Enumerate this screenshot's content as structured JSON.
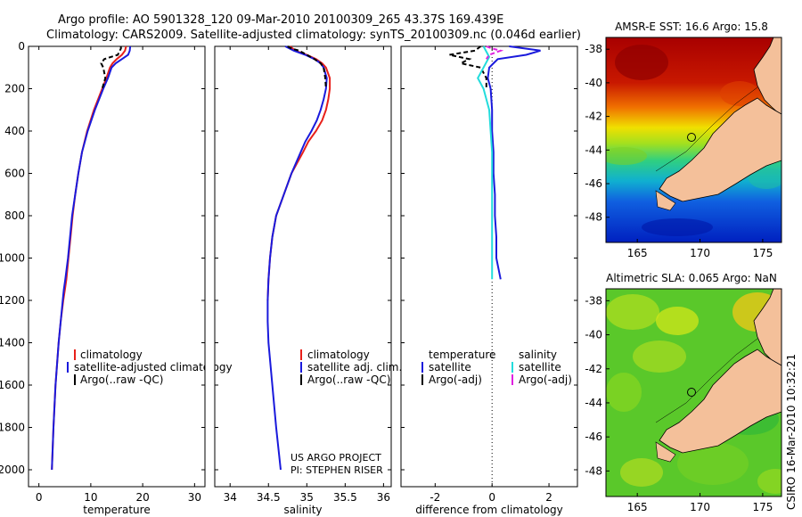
{
  "header": {
    "line1": "Argo profile: AO 5901328_120 09-Mar-2010 20100309_265 43.37S 169.439E",
    "line2": "Climatology: CARS2009. Satellite-adjusted climatology: synTS_20100309.nc (0.046d earlier)"
  },
  "colors": {
    "red": "#e8201a",
    "blue": "#1a1adc",
    "black": "#000000",
    "cyan": "#22dcdc",
    "magenta": "#e020e0",
    "land": "#f4c09a"
  },
  "chart_data": [
    {
      "type": "line",
      "id": "temperature",
      "xlabel": "temperature",
      "ylabel": "",
      "xlim": [
        -2,
        32
      ],
      "ylim": [
        2080,
        0
      ],
      "xticks": [
        0,
        10,
        20,
        30
      ],
      "yticks": [
        0,
        200,
        400,
        600,
        800,
        1000,
        1200,
        1400,
        1600,
        1800,
        2000
      ],
      "legend": [
        "climatology",
        "satellite-adjusted climatology",
        "Argo(..raw -QC)"
      ],
      "series": [
        {
          "name": "climatology",
          "color": "red",
          "y": [
            0,
            20,
            40,
            60,
            80,
            100,
            150,
            200,
            300,
            400,
            500,
            600,
            700,
            800,
            900,
            1000,
            1100,
            1150,
            1200,
            1300,
            1400,
            1600,
            1800,
            2000
          ],
          "x": [
            16.8,
            16.6,
            16.0,
            15.0,
            14.2,
            13.7,
            13.0,
            12.2,
            10.6,
            9.3,
            8.3,
            7.6,
            7.0,
            6.5,
            6.1,
            5.7,
            5.3,
            5.0,
            4.7,
            4.2,
            3.8,
            3.2,
            2.8,
            2.5
          ]
        },
        {
          "name": "satellite-adjusted climatology",
          "color": "blue",
          "y": [
            0,
            20,
            40,
            60,
            80,
            100,
            150,
            200,
            300,
            400,
            500,
            600,
            700,
            800,
            900,
            1000,
            1100,
            1150,
            1200,
            1300,
            1400,
            1600,
            1800,
            2000
          ],
          "x": [
            17.6,
            17.5,
            17.2,
            16.0,
            14.8,
            14.0,
            13.3,
            12.4,
            10.8,
            9.4,
            8.3,
            7.6,
            7.0,
            6.4,
            6.0,
            5.6,
            5.1,
            4.8,
            4.6,
            4.2,
            3.8,
            3.2,
            2.8,
            2.5
          ]
        },
        {
          "name": "Argo(..raw -QC)",
          "color": "black",
          "dash": true,
          "y": [
            0,
            10,
            20,
            40,
            60,
            80,
            100,
            150,
            200
          ],
          "x": [
            15.8,
            15.8,
            15.6,
            15.2,
            12.6,
            12.0,
            12.4,
            12.8,
            12.2
          ]
        }
      ]
    },
    {
      "type": "line",
      "id": "salinity",
      "xlabel": "salinity",
      "ylabel": "",
      "xlim": [
        33.8,
        36.1
      ],
      "ylim": [
        2080,
        0
      ],
      "xticks": [
        34,
        34.5,
        35,
        35.5,
        36
      ],
      "legend": [
        "climatology",
        "satellite adj. clim.",
        "Argo(..raw -QC)"
      ],
      "annotation": [
        "US ARGO PROJECT",
        "PI: STEPHEN RISER"
      ],
      "series": [
        {
          "name": "climatology",
          "color": "red",
          "y": [
            0,
            20,
            40,
            60,
            80,
            100,
            150,
            200,
            250,
            300,
            350,
            400,
            450,
            500,
            600,
            700,
            800,
            900,
            1000,
            1100,
            1200
          ],
          "x": [
            34.78,
            34.85,
            35.0,
            35.12,
            35.2,
            35.25,
            35.3,
            35.3,
            35.28,
            35.25,
            35.2,
            35.12,
            35.02,
            34.95,
            34.8,
            34.7,
            34.6,
            34.55,
            34.52,
            34.5,
            34.49
          ]
        },
        {
          "name": "satellite adj. clim.",
          "color": "blue",
          "y": [
            0,
            20,
            40,
            60,
            80,
            100,
            150,
            200,
            250,
            300,
            350,
            400,
            450,
            500,
            600,
            700,
            800,
            900,
            1000,
            1100,
            1200,
            1300,
            1400,
            1600,
            1800,
            2000
          ],
          "x": [
            34.72,
            34.83,
            34.98,
            35.1,
            35.18,
            35.22,
            35.26,
            35.25,
            35.22,
            35.18,
            35.13,
            35.06,
            34.98,
            34.92,
            34.8,
            34.7,
            34.6,
            34.55,
            34.52,
            34.5,
            34.49,
            34.49,
            34.5,
            34.55,
            34.6,
            34.66
          ]
        },
        {
          "name": "Argo(..raw -QC)",
          "color": "black",
          "dash": true,
          "y": [
            0,
            10,
            20,
            40,
            60,
            80,
            100,
            150,
            200
          ],
          "x": [
            34.75,
            34.8,
            34.9,
            35.0,
            35.1,
            35.18,
            35.22,
            35.24,
            35.25
          ]
        }
      ]
    },
    {
      "type": "line",
      "id": "difference",
      "xlabel": "difference from climatology",
      "ylabel": "",
      "xlim": [
        -3.2,
        3.0
      ],
      "ylim": [
        2080,
        0
      ],
      "xticks": [
        -2,
        0,
        2
      ],
      "reference_line_x": 0,
      "legend_left": {
        "title": "temperature",
        "items": [
          "satellite",
          "Argo(-adj)"
        ]
      },
      "legend_right": {
        "title": "salinity",
        "items": [
          "satellite",
          "Argo(-adj)"
        ]
      },
      "series": [
        {
          "name": "temperature satellite",
          "color": "blue",
          "y": [
            0,
            20,
            40,
            60,
            80,
            100,
            150,
            200,
            300,
            400,
            500,
            600,
            700,
            800,
            900,
            1000,
            1100
          ],
          "x": [
            0.6,
            1.7,
            1.2,
            0.2,
            0.05,
            -0.1,
            -0.15,
            -0.05,
            0.0,
            0.0,
            0.05,
            0.05,
            0.1,
            0.1,
            0.15,
            0.15,
            0.3
          ]
        },
        {
          "name": "temperature Argo(-adj)",
          "color": "black",
          "dash": true,
          "y": [
            0,
            20,
            40,
            60,
            80,
            100,
            150,
            200
          ],
          "x": [
            -0.4,
            -0.6,
            -1.5,
            -0.8,
            -1.1,
            -0.4,
            -0.2,
            -0.2
          ]
        },
        {
          "name": "salinity satellite",
          "color": "cyan",
          "y": [
            0,
            50,
            100,
            150,
            200,
            300,
            400,
            500,
            600,
            800,
            1000,
            1100
          ],
          "x": [
            -0.3,
            -0.1,
            -0.3,
            -0.5,
            -0.3,
            -0.1,
            -0.05,
            0.0,
            0.0,
            0.0,
            0.0,
            0.0
          ]
        },
        {
          "name": "salinity Argo(-adj)",
          "color": "magenta",
          "dash": true,
          "y": [
            0,
            10,
            20,
            40,
            60
          ],
          "x": [
            -0.2,
            0.0,
            0.3,
            -0.1,
            -0.2
          ]
        }
      ]
    },
    {
      "type": "heatmap",
      "id": "sst_map",
      "title": "AMSR-E SST: 16.6 Argo: 15.8",
      "xticks": [
        165,
        170,
        175
      ],
      "yticks": [
        -38,
        -40,
        -42,
        -44,
        -46,
        -48
      ],
      "xlim": [
        162.5,
        176.5
      ],
      "ylim": [
        -49.5,
        -37.3
      ],
      "float_position": {
        "lon": 169.439,
        "lat": -43.37
      }
    },
    {
      "type": "heatmap",
      "id": "sla_map",
      "title": "Altimetric SLA: 0.065 Argo: NaN",
      "xticks": [
        165,
        170,
        175
      ],
      "yticks": [
        -38,
        -40,
        -42,
        -44,
        -46,
        -48
      ],
      "xlim": [
        162.5,
        176.5
      ],
      "ylim": [
        -49.5,
        -37.3
      ],
      "float_position": {
        "lon": 169.439,
        "lat": -43.37
      }
    }
  ],
  "footer": {
    "stamp": "CSIRO 16-Mar-2010 10:32:21"
  }
}
